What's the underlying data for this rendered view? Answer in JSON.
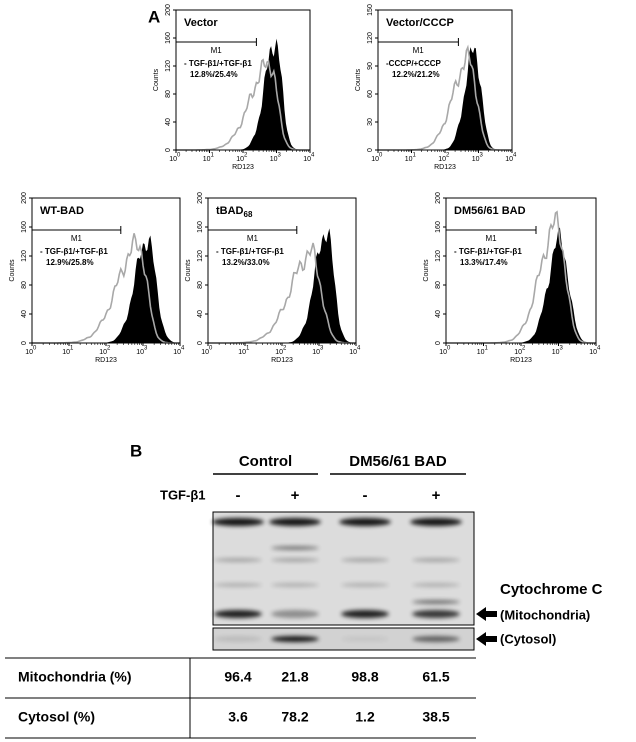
{
  "panel_a": {
    "label": "A",
    "plots": [
      {
        "title": "Vector",
        "marker": "M1",
        "legend": "- TGF-β1/+TGF-β1",
        "percent": "12.8%/25.4%",
        "y_label": "Counts",
        "x_label": "RD123",
        "yticks": [
          0,
          40,
          80,
          120,
          160,
          200
        ],
        "xticks": {
          "base": 10,
          "exponents": [
            0,
            1,
            2,
            3,
            4
          ]
        }
      },
      {
        "title": "Vector/CCCP",
        "marker": "M1",
        "legend": "-CCCP/+CCCP",
        "percent": "12.2%/21.2%",
        "y_label": "Counts",
        "x_label": "RD123",
        "yticks": [
          0,
          30,
          60,
          90,
          120,
          150
        ],
        "xticks": {
          "base": 10,
          "exponents": [
            0,
            1,
            2,
            3,
            4
          ]
        }
      },
      {
        "title": "WT-BAD",
        "marker": "M1",
        "legend": "- TGF-β1/+TGF-β1",
        "percent": "12.9%/25.8%",
        "y_label": "Counts",
        "x_label": "RD123",
        "yticks": [
          0,
          40,
          80,
          120,
          160,
          200
        ],
        "xticks": {
          "base": 10,
          "exponents": [
            0,
            1,
            2,
            3,
            4
          ]
        }
      },
      {
        "title": "tBAD",
        "title_sub": "68",
        "marker": "M1",
        "legend": "- TGF-β1/+TGF-β1",
        "percent": "13.2%/33.0%",
        "y_label": "Counts",
        "x_label": "RD123",
        "yticks": [
          0,
          40,
          80,
          120,
          160,
          200
        ],
        "xticks": {
          "base": 10,
          "exponents": [
            0,
            1,
            2,
            3,
            4
          ]
        }
      },
      {
        "title": "DM56/61 BAD",
        "marker": "M1",
        "legend": "- TGF-β1/+TGF-β1",
        "percent": "13.3%/17.4%",
        "y_label": "Counts",
        "x_label": "RD123",
        "yticks": [
          0,
          40,
          80,
          120,
          160,
          200
        ],
        "xticks": {
          "base": 10,
          "exponents": [
            0,
            1,
            2,
            3,
            4
          ]
        }
      }
    ]
  },
  "panel_b": {
    "label": "B",
    "groups": [
      "Control",
      "DM56/61 BAD"
    ],
    "treatment_label": "TGF-β1",
    "lanes": [
      "-",
      "+",
      "-",
      "+"
    ],
    "blot_labels": {
      "protein": "Cytochrome C",
      "mitochondria": "(Mitochondria)",
      "cytosol": "(Cytosol)"
    },
    "table": {
      "rows": [
        {
          "label": "Mitochondria (%)",
          "values": [
            96.4,
            21.8,
            98.8,
            61.5
          ]
        },
        {
          "label": "Cytosol (%)",
          "values": [
            3.6,
            78.2,
            1.2,
            38.5
          ]
        }
      ]
    }
  }
}
